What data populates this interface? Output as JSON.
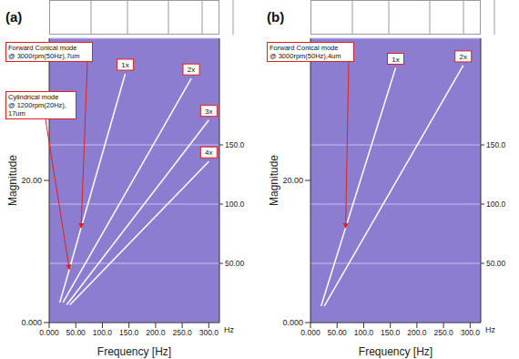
{
  "chart_data": [
    {
      "type": "line",
      "title": "(a)",
      "xlabel": "Frequency [Hz]",
      "x_unit": "Hz",
      "ylabel": "Magnitude",
      "xlim": [
        0,
        320
      ],
      "xticks": [
        {
          "value": 0,
          "label": "0.000"
        },
        {
          "value": 50,
          "label": "50.00"
        },
        {
          "value": 100,
          "label": "100.0"
        },
        {
          "value": 150,
          "label": "150.0"
        },
        {
          "value": 200,
          "label": "200.0"
        },
        {
          "value": 250,
          "label": "250.0"
        },
        {
          "value": 300,
          "label": "300.0"
        }
      ],
      "ylim": [
        0,
        40
      ],
      "yticks": [
        {
          "value": 0,
          "label": "0.000"
        },
        {
          "value": 20,
          "label": "20.00"
        }
      ],
      "y2lim": [
        0,
        240
      ],
      "y2ticks": [
        {
          "value": 50,
          "label": "50.00"
        },
        {
          "value": 100,
          "label": "100.0"
        },
        {
          "value": 150,
          "label": "150.0"
        }
      ],
      "grid": true,
      "series": [
        {
          "name": "1x",
          "color": "#ffffff",
          "axis": "y2",
          "x": [
            20,
            38,
            60,
            143
          ],
          "values": [
            17,
            45,
            80,
            210
          ]
        },
        {
          "name": "2x",
          "color": "#ffffff",
          "axis": "y2",
          "x": [
            26,
            267
          ],
          "values": [
            17,
            206
          ]
        },
        {
          "name": "3x",
          "color": "#ffffff",
          "axis": "y2",
          "x": [
            33,
            300
          ],
          "values": [
            15,
            171
          ]
        },
        {
          "name": "4x",
          "color": "#ffffff",
          "axis": "y2",
          "x": [
            39,
            300
          ],
          "values": [
            15,
            136
          ]
        }
      ],
      "annotations": [
        "Cylindrical mode @ 1200rpm(20Hz), 17um",
        "Forward Conical mode @ 3000rpm(50Hz),7um"
      ]
    },
    {
      "type": "line",
      "title": "(b)",
      "xlabel": "Frequency [Hz]",
      "x_unit": "Hz",
      "ylabel": "Magnitude",
      "xlim": [
        0,
        320
      ],
      "xticks": [
        {
          "value": 0,
          "label": "0.000"
        },
        {
          "value": 50,
          "label": "50.00"
        },
        {
          "value": 100,
          "label": "100.0"
        },
        {
          "value": 150,
          "label": "150.0"
        },
        {
          "value": 200,
          "label": "200.0"
        },
        {
          "value": 250,
          "label": "250.0"
        },
        {
          "value": 300,
          "label": "300.0"
        }
      ],
      "ylim": [
        0,
        40
      ],
      "yticks": [
        {
          "value": 0,
          "label": "0.000"
        },
        {
          "value": 20,
          "label": "20.00"
        }
      ],
      "y2lim": [
        0,
        240
      ],
      "y2ticks": [
        {
          "value": 50,
          "label": "50.00"
        },
        {
          "value": 100,
          "label": "100.0"
        },
        {
          "value": 150,
          "label": "150.0"
        }
      ],
      "grid": true,
      "series": [
        {
          "name": "1x",
          "color": "#ffffff",
          "axis": "y2",
          "x": [
            20,
            66,
            160
          ],
          "values": [
            14,
            80,
            215
          ]
        },
        {
          "name": "2x",
          "color": "#ffffff",
          "axis": "y2",
          "x": [
            26,
            287
          ],
          "values": [
            14,
            217
          ]
        }
      ],
      "annotations": [
        "Forward Conical mode @ 3000rpm(50Hz),4um"
      ]
    }
  ]
}
